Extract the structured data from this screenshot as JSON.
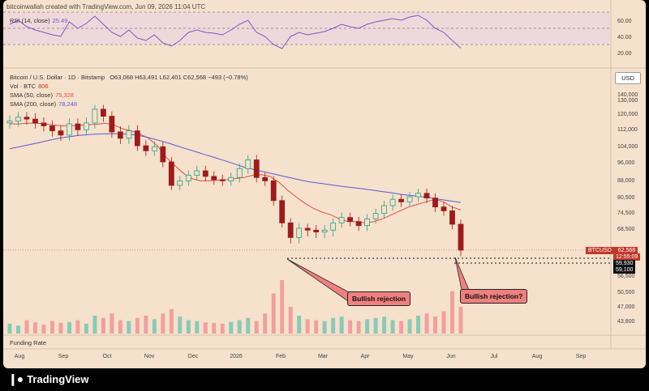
{
  "header": {
    "text": "bitcoinwallah created with TradingView.com, Jun 09, 2026 11:04 UTC"
  },
  "rsi_legend": {
    "label": "RSI (14, close)",
    "value": "25.49"
  },
  "rsi_axis": {
    "ticks": [
      "60.00",
      "40.00",
      "20.00"
    ]
  },
  "price_legend": {
    "symbol": "Bitcoin / U.S. Dollar · 1D · Bitstamp",
    "ohlc": "O63,068  H63,491  L62,401  C62,568  −493 (−0.78%)",
    "vol_label": "Vol · BTC",
    "vol_value": "806",
    "sma50_label": "SMA (50, close)",
    "sma50_value": "75,328",
    "sma200_label": "SMA (200, close)",
    "sma200_value": "78,248"
  },
  "currency_button": "USD",
  "price_axis": {
    "ticks": [
      "140,000",
      "130,000",
      "120,000",
      "112,000",
      "104,000",
      "96,000",
      "88,000",
      "80,500",
      "74,500",
      "68,500",
      "56,500",
      "50,500",
      "47,000",
      "43,800"
    ]
  },
  "price_tags": {
    "symbol": "BTCUSD",
    "price": "62,568",
    "countdown": "12:55:09",
    "level1": "59,930",
    "level2": "59,100"
  },
  "funding_label": "Funding Rate",
  "time_axis": {
    "labels": [
      "Aug",
      "Sep",
      "Oct",
      "Nov",
      "Dec",
      "2026",
      "Feb",
      "Mar",
      "Apr",
      "May",
      "Jun",
      "Jul",
      "Aug",
      "Sep"
    ]
  },
  "annotations": {
    "first": "Bullish rejection",
    "second": "Bullish rejection?"
  },
  "brand": {
    "name": "TradingView"
  },
  "colors": {
    "up": "#2f9d86",
    "down": "#9b1c1c",
    "sma50": "#e0504a",
    "sma200": "#5b5bd6",
    "rsi": "#7e57c2",
    "background": "#f5e1cc",
    "callout": "#f08080"
  },
  "chart_data": {
    "type": "candlestick",
    "x_start": "2025-07-15",
    "x_step_days": 7,
    "close": [
      116000,
      118000,
      117000,
      115000,
      113500,
      111000,
      109000,
      114500,
      111500,
      115000,
      123000,
      118500,
      110500,
      107500,
      111000,
      104000,
      101500,
      103500,
      96000,
      85500,
      87500,
      90000,
      92000,
      89500,
      88000,
      87500,
      89000,
      93000,
      97000,
      89000,
      87500,
      79000,
      70500,
      66000,
      68500,
      68000,
      67500,
      68000,
      70500,
      72500,
      71000,
      69500,
      72000,
      74000,
      77000,
      79500,
      78500,
      80500,
      82000,
      80000,
      76500,
      75000,
      70000,
      62568
    ],
    "open_first": 115000,
    "sma50": [
      114500,
      114500,
      114800,
      114900,
      114500,
      114000,
      113500,
      113500,
      113800,
      114000,
      114300,
      114800,
      114000,
      112000,
      111000,
      109500,
      107500,
      104000,
      98500,
      94500,
      91000,
      88500,
      87500,
      87500,
      87800,
      88000,
      88500,
      89000,
      90000,
      90300,
      89500,
      87000,
      83500,
      80500,
      78000,
      76000,
      74500,
      73500,
      72000,
      71000,
      71000,
      70500,
      71000,
      72000,
      73500,
      75000,
      76500,
      77500,
      78500,
      79500,
      78500,
      76500,
      75328
    ],
    "sma200": [
      102500,
      103500,
      104500,
      105500,
      106500,
      107500,
      108200,
      108800,
      109200,
      109500,
      109600,
      109600,
      109500,
      109000,
      108000,
      106800,
      105500,
      104000,
      102500,
      101000,
      99500,
      98000,
      96500,
      95000,
      93500,
      92500,
      91500,
      90500,
      89500,
      88500,
      87500,
      86800,
      86200,
      85600,
      85000,
      84500,
      84000,
      83400,
      82800,
      82200,
      81500,
      81000,
      80500,
      80000,
      79400,
      78800,
      78248
    ],
    "volume": [
      22,
      18,
      30,
      25,
      20,
      28,
      24,
      26,
      30,
      22,
      40,
      35,
      45,
      30,
      28,
      35,
      40,
      32,
      45,
      55,
      38,
      30,
      28,
      25,
      24,
      22,
      26,
      30,
      35,
      28,
      45,
      90,
      120,
      60,
      40,
      32,
      30,
      28,
      35,
      38,
      30,
      28,
      32,
      35,
      38,
      30,
      28,
      32,
      40,
      45,
      38,
      50,
      95,
      60
    ],
    "rsi": [
      55,
      60,
      52,
      48,
      45,
      42,
      40,
      58,
      50,
      56,
      65,
      55,
      45,
      40,
      48,
      38,
      35,
      42,
      32,
      28,
      35,
      45,
      48,
      45,
      44,
      42,
      48,
      55,
      60,
      45,
      40,
      30,
      25,
      40,
      45,
      42,
      44,
      46,
      50,
      55,
      52,
      50,
      55,
      58,
      60,
      62,
      60,
      64,
      66,
      60,
      50,
      45,
      35,
      25.49
    ],
    "ylim": [
      43000,
      145000
    ],
    "support_levels": [
      59930,
      59100
    ]
  }
}
